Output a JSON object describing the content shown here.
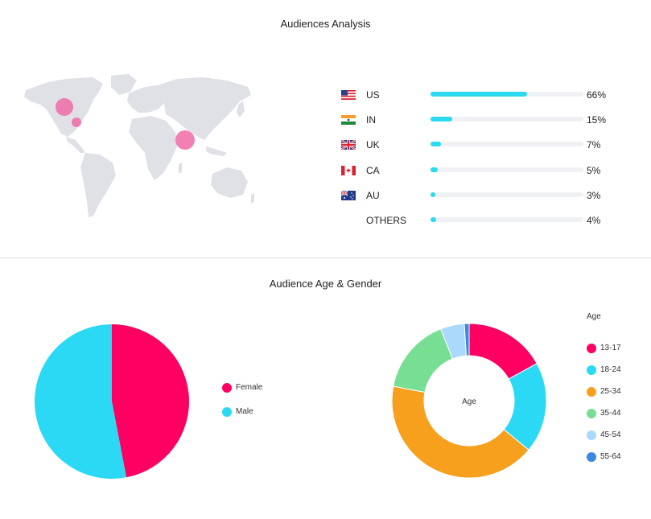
{
  "header": {
    "title": "Audiences Analysis"
  },
  "countries": {
    "items": [
      {
        "code": "US",
        "percent_label": "66%",
        "value": 66,
        "flag": "us-flag",
        "bubble": "pink"
      },
      {
        "code": "IN",
        "percent_label": "15%",
        "value": 15,
        "flag": "india-flag"
      },
      {
        "code": "UK",
        "percent_label": "7%",
        "value": 7,
        "flag": "uk-flag"
      },
      {
        "code": "CA",
        "percent_label": "5%",
        "value": 5,
        "flag": "canada-flag"
      },
      {
        "code": "AU",
        "percent_label": "3%",
        "value": 3,
        "flag": "australia-flag"
      },
      {
        "code": "OTHERS",
        "percent_label": "4%",
        "value": 4,
        "flag": ""
      }
    ],
    "bar_color": "#2bd9f1",
    "bubble_color": "#f06aa6"
  },
  "section2": {
    "title": "Audience Age & Gender"
  },
  "chart_data": [
    {
      "type": "pie",
      "categories": [
        "Female",
        "Male"
      ],
      "values": [
        47,
        53
      ],
      "colors": [
        "#ff0062",
        "#2bd9f5"
      ],
      "legend": "right"
    },
    {
      "type": "pie",
      "variant": "donut",
      "center_label": "Age",
      "legend_title": "Age",
      "categories": [
        "13-17",
        "18-24",
        "25-34",
        "35-44",
        "45-54",
        "55-64"
      ],
      "values": [
        17,
        19,
        42,
        16,
        5,
        1
      ],
      "colors": [
        "#ff0062",
        "#2bd9f5",
        "#f7a01d",
        "#78de93",
        "#a9d9fb",
        "#3a88e0"
      ],
      "legend": "right"
    }
  ]
}
